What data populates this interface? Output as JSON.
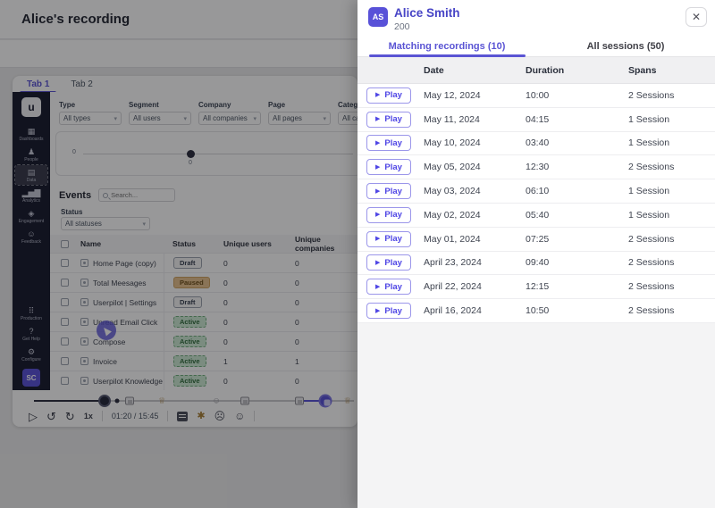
{
  "colors": {
    "accent": "#5851d8",
    "tab_active": "#5a54d4",
    "active_badge": "#cdebd4",
    "paused_badge": "#e7c28e"
  },
  "background": {
    "header_title": "Alice's recording",
    "card_tabs": [
      {
        "label": "Tab 1"
      },
      {
        "label": "Tab 2"
      }
    ],
    "sidebar": {
      "logo": "u",
      "avatar": "SC",
      "items": [
        {
          "label": "Dashboards",
          "icon": "dashboards-icon",
          "active": ""
        },
        {
          "label": "People",
          "icon": "people-icon",
          "active": ""
        },
        {
          "label": "Data",
          "icon": "data-icon",
          "active": "active"
        },
        {
          "label": "Analytics",
          "icon": "analytics-icon",
          "active": ""
        },
        {
          "label": "Engagement",
          "icon": "engagement-icon",
          "active": ""
        },
        {
          "label": "Feedback",
          "icon": "feedback-icon",
          "active": ""
        }
      ],
      "bottom_items": [
        {
          "label": "Production",
          "icon": "production-icon",
          "active": ""
        },
        {
          "label": "Get Help",
          "icon": "help-icon",
          "active": ""
        },
        {
          "label": "Configure",
          "icon": "configure-icon",
          "active": ""
        }
      ]
    },
    "filters": [
      {
        "label": "Type",
        "value": "All types"
      },
      {
        "label": "Segment",
        "value": "All users"
      },
      {
        "label": "Company",
        "value": "All companies"
      },
      {
        "label": "Page",
        "value": "All pages"
      },
      {
        "label": "Category",
        "value": "All cat"
      }
    ],
    "slider": {
      "left_label": "0",
      "value_label": "0"
    },
    "events": {
      "title": "Events",
      "search_placeholder": "Search...",
      "status_label": "Status",
      "status_value": "All statuses",
      "columns": [
        "Name",
        "Status",
        "Unique users",
        "Unique companies"
      ],
      "rows": [
        {
          "name": "Home Page (copy)",
          "status": "Draft",
          "users": "0",
          "companies": "0"
        },
        {
          "name": "Total Meesages",
          "status": "Paused",
          "users": "0",
          "companies": "0"
        },
        {
          "name": "Userpilot | Settings",
          "status": "Draft",
          "users": "0",
          "companies": "0"
        },
        {
          "name": "Unread Email Click",
          "status": "Active",
          "users": "0",
          "companies": "0"
        },
        {
          "name": "Compose",
          "status": "Active",
          "users": "0",
          "companies": "0"
        },
        {
          "name": "Invoice",
          "status": "Active",
          "users": "1",
          "companies": "1"
        },
        {
          "name": "Userpilot Knowledge ...",
          "status": "Active",
          "users": "0",
          "companies": "0"
        }
      ]
    },
    "player": {
      "speed": "1x",
      "time": "01:20 / 15:45",
      "progress": {
        "dark": [
          0,
          22
        ],
        "indigo": [
          83,
          93
        ]
      },
      "timeline_markers": [
        {
          "type": "session-head",
          "pos": 22
        },
        {
          "type": "dot",
          "pos": 26
        },
        {
          "type": "note",
          "pos": 30
        },
        {
          "type": "user",
          "pos": 40
        },
        {
          "type": "smiley",
          "pos": 57
        },
        {
          "type": "note",
          "pos": 66
        },
        {
          "type": "note",
          "pos": 83
        },
        {
          "type": "session-active",
          "pos": 91
        },
        {
          "type": "user",
          "pos": 98
        }
      ]
    }
  },
  "panel": {
    "user": {
      "initials": "AS",
      "name": "Alice Smith",
      "subtitle": "200"
    },
    "close_label": "✕",
    "tabs": [
      {
        "label": "Matching recordings (10)"
      },
      {
        "label": "All sessions (50)"
      }
    ],
    "table": {
      "columns": [
        "Date",
        "Duration",
        "Spans"
      ],
      "play_label": "Play",
      "rows": [
        {
          "date": "May 12, 2024",
          "duration": "10:00",
          "spans": "2 Sessions"
        },
        {
          "date": "May 11, 2024",
          "duration": "04:15",
          "spans": "1 Session"
        },
        {
          "date": "May 10, 2024",
          "duration": "03:40",
          "spans": "1 Session"
        },
        {
          "date": "May 05, 2024",
          "duration": "12:30",
          "spans": "2 Sessions"
        },
        {
          "date": "May 03, 2024",
          "duration": "06:10",
          "spans": "1 Session"
        },
        {
          "date": "May 02, 2024",
          "duration": "05:40",
          "spans": "1 Session"
        },
        {
          "date": "May 01, 2024",
          "duration": "07:25",
          "spans": "2 Sessions"
        },
        {
          "date": "April 23, 2024",
          "duration": "09:40",
          "spans": "2 Sessions"
        },
        {
          "date": "April 22, 2024",
          "duration": "12:15",
          "spans": "2 Sessions"
        },
        {
          "date": "April 16, 2024",
          "duration": "10:50",
          "spans": "2 Sessions"
        }
      ]
    }
  }
}
